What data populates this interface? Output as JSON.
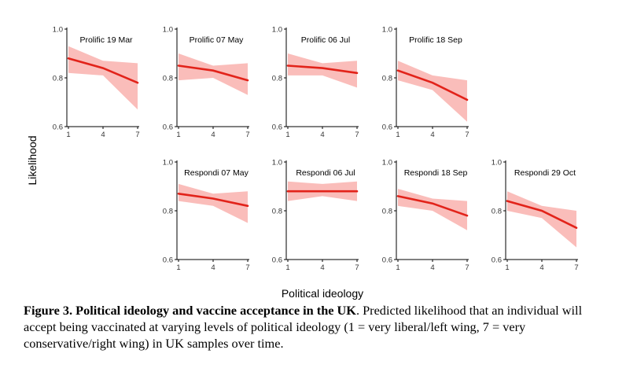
{
  "chart_data": {
    "type": "line",
    "ylabel": "Likelihood",
    "xlabel": "Political ideology",
    "ylim": [
      0.6,
      1.0
    ],
    "xlim": [
      1,
      7
    ],
    "yticks": [
      "0.6",
      "0.8",
      "1.0"
    ],
    "xticks": [
      "1",
      "4",
      "7"
    ],
    "grid": false,
    "panels": [
      {
        "title": "Prolific 19 Mar",
        "row": 0,
        "col": 0,
        "x": [
          1,
          4,
          7
        ],
        "y": [
          0.88,
          0.84,
          0.78
        ],
        "lower": [
          0.82,
          0.81,
          0.67
        ],
        "upper": [
          0.93,
          0.87,
          0.86
        ]
      },
      {
        "title": "Prolific 07 May",
        "row": 0,
        "col": 1,
        "x": [
          1,
          4,
          7
        ],
        "y": [
          0.85,
          0.83,
          0.79
        ],
        "lower": [
          0.79,
          0.8,
          0.73
        ],
        "upper": [
          0.9,
          0.85,
          0.86
        ]
      },
      {
        "title": "Prolific 06 Jul",
        "row": 0,
        "col": 2,
        "x": [
          1,
          4,
          7
        ],
        "y": [
          0.85,
          0.84,
          0.82
        ],
        "lower": [
          0.81,
          0.81,
          0.76
        ],
        "upper": [
          0.9,
          0.86,
          0.87
        ]
      },
      {
        "title": "Prolific 18 Sep",
        "row": 0,
        "col": 3,
        "x": [
          1,
          4,
          7
        ],
        "y": [
          0.83,
          0.78,
          0.71
        ],
        "lower": [
          0.79,
          0.75,
          0.62
        ],
        "upper": [
          0.87,
          0.81,
          0.79
        ]
      },
      {
        "title": "Respondi 07 May",
        "row": 1,
        "col": 1,
        "x": [
          1,
          4,
          7
        ],
        "y": [
          0.87,
          0.85,
          0.82
        ],
        "lower": [
          0.84,
          0.82,
          0.75
        ],
        "upper": [
          0.91,
          0.87,
          0.88
        ]
      },
      {
        "title": "Respondi 06 Jul",
        "row": 1,
        "col": 2,
        "x": [
          1,
          4,
          7
        ],
        "y": [
          0.88,
          0.88,
          0.88
        ],
        "lower": [
          0.84,
          0.86,
          0.84
        ],
        "upper": [
          0.92,
          0.91,
          0.92
        ]
      },
      {
        "title": "Respondi 18 Sep",
        "row": 1,
        "col": 3,
        "x": [
          1,
          4,
          7
        ],
        "y": [
          0.86,
          0.83,
          0.78
        ],
        "lower": [
          0.82,
          0.8,
          0.72
        ],
        "upper": [
          0.89,
          0.85,
          0.84
        ]
      },
      {
        "title": "Respondi 29 Oct",
        "row": 1,
        "col": 4,
        "x": [
          1,
          4,
          7
        ],
        "y": [
          0.84,
          0.8,
          0.73
        ],
        "lower": [
          0.8,
          0.77,
          0.65
        ],
        "upper": [
          0.88,
          0.82,
          0.8
        ]
      }
    ]
  },
  "colors": {
    "line": "#e2231a",
    "band": "#f8a3a0"
  },
  "caption": {
    "bold": "Figure 3. Political ideology and vaccine acceptance in the UK",
    "rest": ". Predicted likelihood that an individual will accept being vaccinated at varying levels of political ideology (1 = very liberal/left wing, 7 = very conservative/right wing) in UK samples over time."
  }
}
